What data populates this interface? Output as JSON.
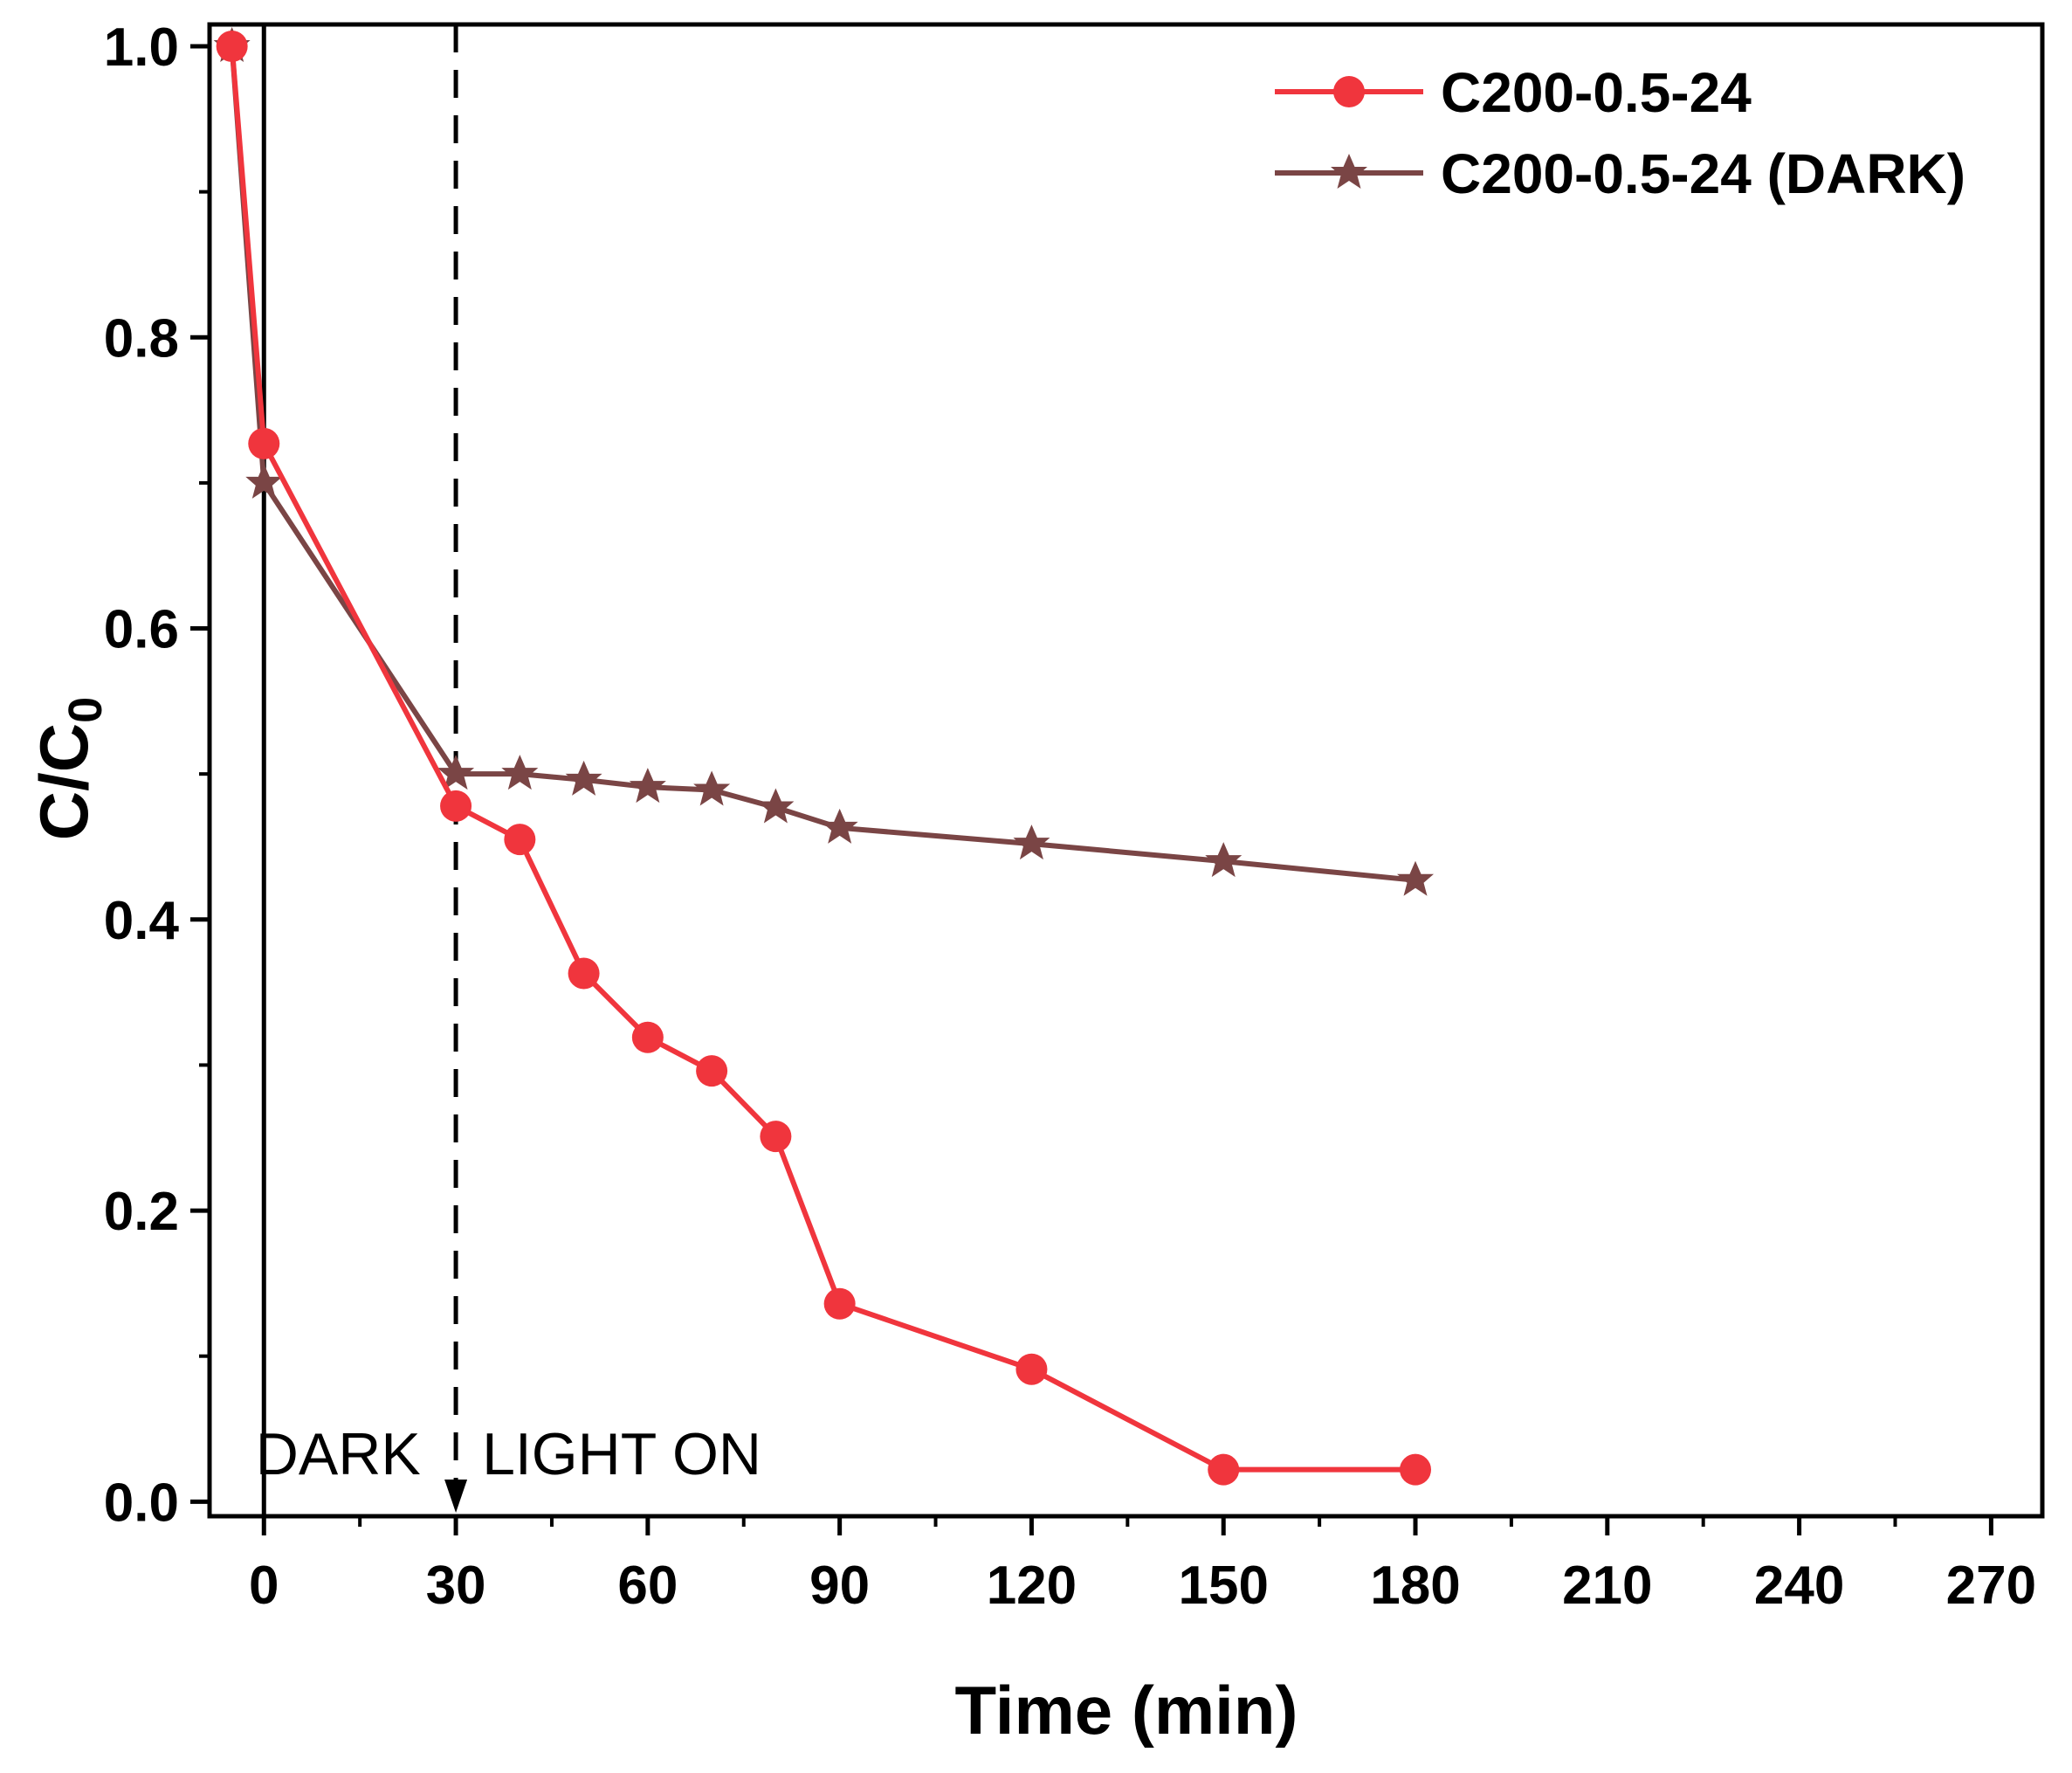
{
  "chart_data": {
    "type": "line",
    "title": "",
    "xlabel": "Time (min)",
    "ylabel": "C/C",
    "ylabel_subscript": "0",
    "xlim": [
      -8.5,
      278
    ],
    "ylim": [
      -0.01,
      1.015
    ],
    "x_ticks": [
      0,
      30,
      60,
      90,
      120,
      150,
      180,
      210,
      240,
      270
    ],
    "x_tick_labels": [
      "0",
      "30",
      "60",
      "90",
      "120",
      "150",
      "180",
      "210",
      "240",
      "270"
    ],
    "y_ticks": [
      0.0,
      0.2,
      0.4,
      0.6,
      0.8,
      1.0
    ],
    "y_tick_labels": [
      "0.0",
      "0.2",
      "0.4",
      "0.6",
      "0.8",
      "1.0"
    ],
    "grid": false,
    "legend_position": "top-right",
    "series": [
      {
        "name": "C200-0.5-24",
        "color": "#f0353d",
        "marker": "circle",
        "x": [
          -5,
          0,
          30,
          40,
          50,
          60,
          70,
          80,
          90,
          120,
          150,
          180
        ],
        "y": [
          1.0,
          0.727,
          0.478,
          0.455,
          0.363,
          0.319,
          0.296,
          0.251,
          0.136,
          0.091,
          0.022,
          0.022
        ]
      },
      {
        "name": "C200-0.5-24 (DARK)",
        "color": "#7a4545",
        "marker": "star",
        "x": [
          -5,
          0,
          30,
          40,
          50,
          60,
          70,
          80,
          90,
          120,
          150,
          180
        ],
        "y": [
          1.0,
          0.7,
          0.5,
          0.5,
          0.496,
          0.491,
          0.489,
          0.477,
          0.463,
          0.452,
          0.44,
          0.427
        ]
      }
    ],
    "annotations": [
      {
        "text": "DARK",
        "x": 0,
        "kind": "solid-line"
      },
      {
        "text": "LIGHT ON",
        "x": 30,
        "kind": "dashed-line"
      }
    ]
  }
}
